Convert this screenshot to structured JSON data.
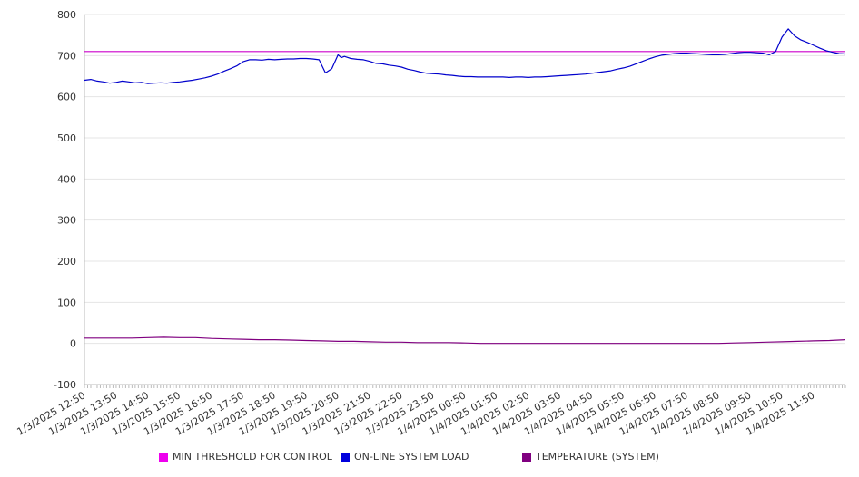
{
  "chart_data": {
    "type": "line",
    "ylim": [
      -100,
      800
    ],
    "yticks": [
      -100,
      0,
      100,
      200,
      300,
      400,
      500,
      600,
      700,
      800
    ],
    "grid": true,
    "legend_position": "bottom",
    "x_tick_labels": [
      "1/3/2025 12:50",
      "1/3/2025 13:50",
      "1/3/2025 14:50",
      "1/3/2025 15:50",
      "1/3/2025 16:50",
      "1/3/2025 17:50",
      "1/3/2025 18:50",
      "1/3/2025 19:50",
      "1/3/2025 20:50",
      "1/3/2025 21:50",
      "1/3/2025 22:50",
      "1/3/2025 23:50",
      "1/4/2025 00:50",
      "1/4/2025 01:50",
      "1/4/2025 02:50",
      "1/4/2025 03:50",
      "1/4/2025 04:50",
      "1/4/2025 05:50",
      "1/4/2025 06:50",
      "1/4/2025 07:50",
      "1/4/2025 08:50",
      "1/4/2025 09:50",
      "1/4/2025 10:50",
      "1/4/2025 11:50"
    ],
    "x_start_index": 0,
    "x_end_index": 24,
    "series": [
      {
        "name": "MIN THRESHOLD FOR CONTROL",
        "color": "#cc00cc",
        "points": [
          [
            0,
            710
          ],
          [
            24,
            710
          ]
        ]
      },
      {
        "name": "ON-LINE SYSTEM LOAD",
        "color": "#0000cc",
        "points": [
          [
            0,
            640
          ],
          [
            0.2,
            642
          ],
          [
            0.4,
            638
          ],
          [
            0.6,
            636
          ],
          [
            0.8,
            633
          ],
          [
            1.0,
            635
          ],
          [
            1.2,
            638
          ],
          [
            1.4,
            636
          ],
          [
            1.6,
            634
          ],
          [
            1.8,
            635
          ],
          [
            2.0,
            632
          ],
          [
            2.2,
            633
          ],
          [
            2.4,
            634
          ],
          [
            2.6,
            633
          ],
          [
            2.8,
            635
          ],
          [
            3.0,
            636
          ],
          [
            3.2,
            638
          ],
          [
            3.4,
            640
          ],
          [
            3.6,
            643
          ],
          [
            3.8,
            646
          ],
          [
            4.0,
            650
          ],
          [
            4.2,
            655
          ],
          [
            4.4,
            662
          ],
          [
            4.6,
            668
          ],
          [
            4.8,
            675
          ],
          [
            5.0,
            685
          ],
          [
            5.2,
            690
          ],
          [
            5.4,
            690
          ],
          [
            5.6,
            689
          ],
          [
            5.8,
            691
          ],
          [
            6.0,
            690
          ],
          [
            6.2,
            691
          ],
          [
            6.4,
            692
          ],
          [
            6.6,
            692
          ],
          [
            6.8,
            693
          ],
          [
            7.0,
            693
          ],
          [
            7.2,
            692
          ],
          [
            7.4,
            690
          ],
          [
            7.6,
            658
          ],
          [
            7.8,
            668
          ],
          [
            8.0,
            702
          ],
          [
            8.1,
            695
          ],
          [
            8.2,
            698
          ],
          [
            8.4,
            693
          ],
          [
            8.6,
            691
          ],
          [
            8.8,
            690
          ],
          [
            9.0,
            686
          ],
          [
            9.2,
            681
          ],
          [
            9.4,
            680
          ],
          [
            9.6,
            677
          ],
          [
            9.8,
            675
          ],
          [
            10.0,
            672
          ],
          [
            10.2,
            667
          ],
          [
            10.4,
            664
          ],
          [
            10.6,
            660
          ],
          [
            10.8,
            657
          ],
          [
            11.0,
            656
          ],
          [
            11.2,
            655
          ],
          [
            11.4,
            653
          ],
          [
            11.6,
            652
          ],
          [
            11.8,
            650
          ],
          [
            12.0,
            649
          ],
          [
            12.2,
            649
          ],
          [
            12.4,
            648
          ],
          [
            12.6,
            648
          ],
          [
            12.8,
            648
          ],
          [
            13.0,
            648
          ],
          [
            13.2,
            648
          ],
          [
            13.4,
            647
          ],
          [
            13.6,
            648
          ],
          [
            13.8,
            648
          ],
          [
            14.0,
            647
          ],
          [
            14.2,
            648
          ],
          [
            14.4,
            648
          ],
          [
            14.6,
            649
          ],
          [
            14.8,
            650
          ],
          [
            15.0,
            651
          ],
          [
            15.2,
            652
          ],
          [
            15.4,
            653
          ],
          [
            15.6,
            654
          ],
          [
            15.8,
            655
          ],
          [
            16.0,
            657
          ],
          [
            16.2,
            659
          ],
          [
            16.4,
            661
          ],
          [
            16.6,
            663
          ],
          [
            16.8,
            667
          ],
          [
            17.0,
            670
          ],
          [
            17.2,
            674
          ],
          [
            17.4,
            680
          ],
          [
            17.6,
            686
          ],
          [
            17.8,
            692
          ],
          [
            18.0,
            697
          ],
          [
            18.2,
            701
          ],
          [
            18.4,
            703
          ],
          [
            18.6,
            705
          ],
          [
            18.8,
            706
          ],
          [
            19.0,
            706
          ],
          [
            19.2,
            705
          ],
          [
            19.4,
            704
          ],
          [
            19.6,
            703
          ],
          [
            19.8,
            702
          ],
          [
            20.0,
            702
          ],
          [
            20.2,
            703
          ],
          [
            20.4,
            705
          ],
          [
            20.6,
            707
          ],
          [
            20.8,
            708
          ],
          [
            21.0,
            708
          ],
          [
            21.2,
            707
          ],
          [
            21.4,
            706
          ],
          [
            21.6,
            702
          ],
          [
            21.8,
            710
          ],
          [
            22.0,
            745
          ],
          [
            22.2,
            765
          ],
          [
            22.4,
            748
          ],
          [
            22.6,
            738
          ],
          [
            22.8,
            732
          ],
          [
            23.0,
            725
          ],
          [
            23.2,
            718
          ],
          [
            23.4,
            712
          ],
          [
            23.6,
            708
          ],
          [
            23.8,
            705
          ],
          [
            24.0,
            704
          ]
        ]
      },
      {
        "name": "TEMPERATURE (SYSTEM)",
        "color": "#800080",
        "points": [
          [
            0,
            13
          ],
          [
            1,
            13
          ],
          [
            1.5,
            13
          ],
          [
            2,
            14
          ],
          [
            2.5,
            15
          ],
          [
            3,
            14
          ],
          [
            3.5,
            14
          ],
          [
            4,
            12
          ],
          [
            4.5,
            11
          ],
          [
            5,
            10
          ],
          [
            5.5,
            9
          ],
          [
            6,
            9
          ],
          [
            6.5,
            8
          ],
          [
            7,
            7
          ],
          [
            7.5,
            6
          ],
          [
            8,
            5
          ],
          [
            8.5,
            5
          ],
          [
            9,
            4
          ],
          [
            9.5,
            3
          ],
          [
            10,
            3
          ],
          [
            10.5,
            2
          ],
          [
            11,
            2
          ],
          [
            11.5,
            2
          ],
          [
            12,
            1
          ],
          [
            12.5,
            0
          ],
          [
            13,
            0
          ],
          [
            14,
            0
          ],
          [
            15,
            0
          ],
          [
            16,
            0
          ],
          [
            17,
            0
          ],
          [
            18,
            0
          ],
          [
            19,
            0
          ],
          [
            20,
            0
          ],
          [
            20.5,
            1
          ],
          [
            21,
            2
          ],
          [
            21.5,
            3
          ],
          [
            22,
            4
          ],
          [
            22.5,
            5
          ],
          [
            23,
            6
          ],
          [
            23.5,
            7
          ],
          [
            24,
            9
          ]
        ]
      }
    ]
  },
  "legend": {
    "items": [
      {
        "label": "MIN THRESHOLD FOR CONTROL",
        "color": "#ee00ee"
      },
      {
        "label": "ON-LINE SYSTEM LOAD",
        "color": "#0000dd"
      },
      {
        "label": "TEMPERATURE (SYSTEM)",
        "color": "#800080"
      }
    ]
  }
}
